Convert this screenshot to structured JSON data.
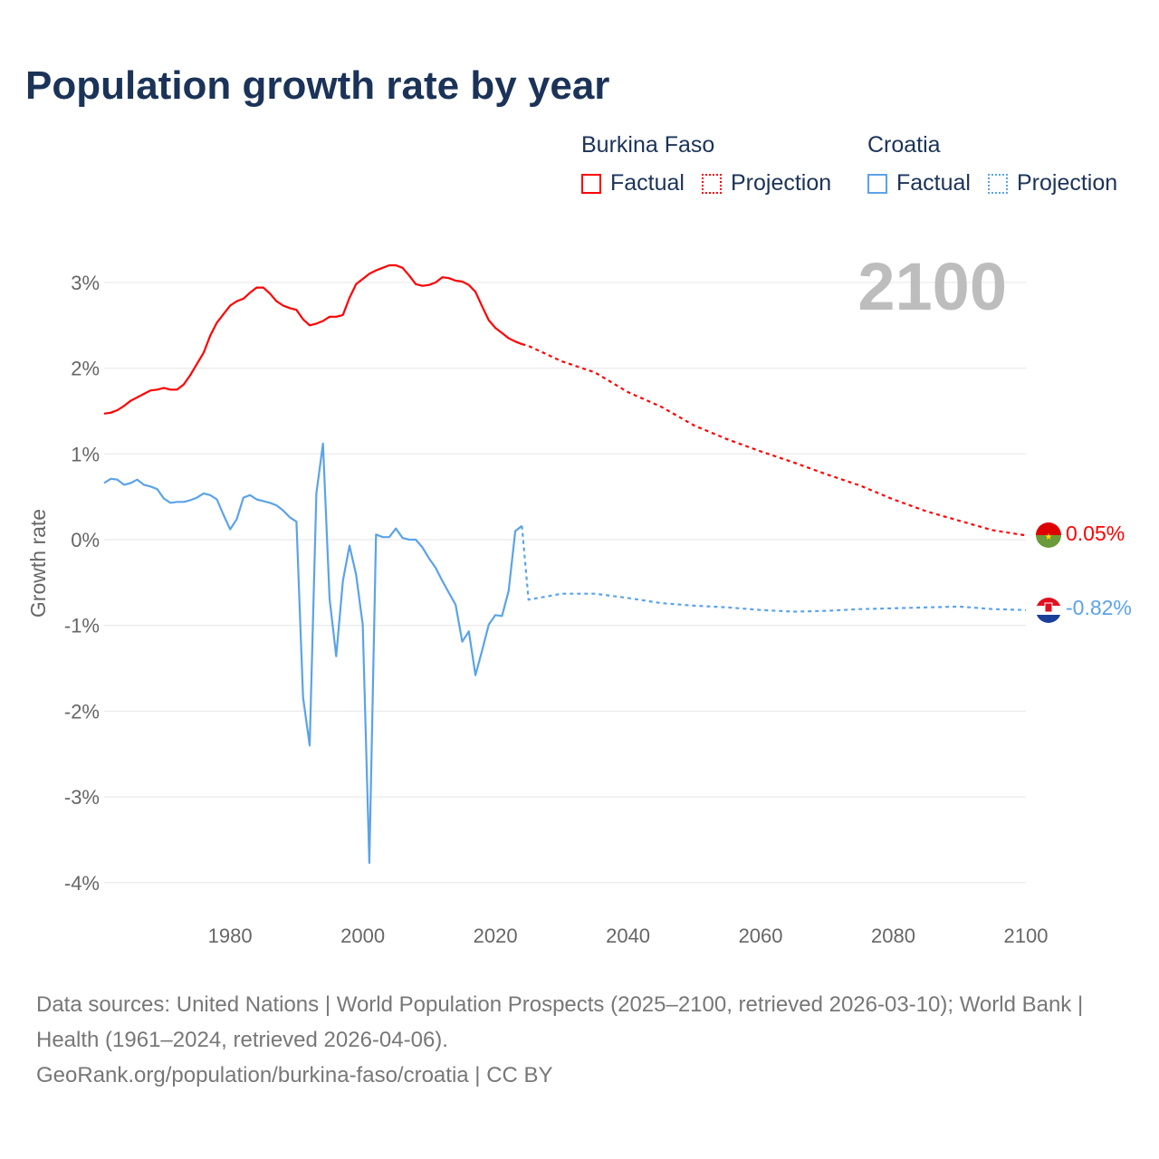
{
  "title": "Population growth rate by year",
  "legend": {
    "groups": [
      {
        "name": "Burkina Faso",
        "factual": "Factual",
        "projection": "Projection",
        "color": "#ff0000"
      },
      {
        "name": "Croatia",
        "factual": "Factual",
        "projection": "Projection",
        "color": "#5ba3e8"
      }
    ]
  },
  "year_label": "2100",
  "end_labels": {
    "burkina": "0.05%",
    "croatia": "-0.82%"
  },
  "chart_data": {
    "type": "line",
    "title": "Population growth rate by year",
    "xlabel": "",
    "ylabel": "Growth rate",
    "xlim": [
      1961,
      2100
    ],
    "ylim": [
      -4.2,
      3.4
    ],
    "xticks": [
      1980,
      2000,
      2020,
      2040,
      2060,
      2080,
      2100
    ],
    "xtick_labels": [
      "1980",
      "2000",
      "2020",
      "2040",
      "2060",
      "2080",
      "2100"
    ],
    "yticks": [
      3,
      2,
      1,
      0,
      -1,
      -2,
      -3,
      -4
    ],
    "ytick_labels": [
      "3%",
      "2%",
      "1%",
      "0%",
      "-1%",
      "-2%",
      "-3%",
      "-4%"
    ],
    "grid": true,
    "series": [
      {
        "name": "Burkina Faso Factual",
        "color": "#ff0000",
        "dash": false,
        "start_year": 1961,
        "values": [
          1.47,
          1.48,
          1.51,
          1.56,
          1.62,
          1.66,
          1.7,
          1.74,
          1.75,
          1.77,
          1.75,
          1.75,
          1.81,
          1.92,
          2.05,
          2.18,
          2.38,
          2.53,
          2.63,
          2.73,
          2.78,
          2.81,
          2.88,
          2.94,
          2.94,
          2.87,
          2.78,
          2.73,
          2.7,
          2.68,
          2.57,
          2.5,
          2.52,
          2.55,
          2.6,
          2.6,
          2.62,
          2.82,
          2.98,
          3.04,
          3.1,
          3.14,
          3.17,
          3.2,
          3.2,
          3.17,
          3.08,
          2.98,
          2.96,
          2.97,
          3.0,
          3.06,
          3.05,
          3.02,
          3.01,
          2.97,
          2.89,
          2.72,
          2.56,
          2.47,
          2.41,
          2.35,
          2.31,
          2.28
        ]
      },
      {
        "name": "Burkina Faso Projection",
        "color": "#ff0000",
        "dash": true,
        "x": [
          2024,
          2025,
          2030,
          2035,
          2040,
          2045,
          2050,
          2055,
          2060,
          2065,
          2070,
          2075,
          2080,
          2085,
          2090,
          2095,
          2100
        ],
        "values": [
          2.28,
          2.26,
          2.08,
          1.95,
          1.72,
          1.55,
          1.33,
          1.17,
          1.03,
          0.9,
          0.76,
          0.63,
          0.47,
          0.33,
          0.22,
          0.11,
          0.05
        ]
      },
      {
        "name": "Croatia Factual",
        "color": "#5ba3e8",
        "dash": false,
        "start_year": 1961,
        "values": [
          0.66,
          0.71,
          0.7,
          0.64,
          0.66,
          0.7,
          0.64,
          0.62,
          0.59,
          0.48,
          0.43,
          0.44,
          0.44,
          0.46,
          0.49,
          0.54,
          0.52,
          0.47,
          0.29,
          0.12,
          0.24,
          0.49,
          0.52,
          0.47,
          0.45,
          0.43,
          0.4,
          0.34,
          0.26,
          0.21,
          -1.84,
          -2.4,
          0.54,
          1.12,
          -0.69,
          -1.36,
          -0.48,
          -0.07,
          -0.41,
          -0.99,
          -3.77,
          0.06,
          0.03,
          0.03,
          0.13,
          0.02,
          0.0,
          0.0,
          -0.09,
          -0.22,
          -0.33,
          -0.48,
          -0.62,
          -0.76,
          -1.19,
          -1.07,
          -1.58,
          -1.29,
          -0.99,
          -0.88,
          -0.89,
          -0.6,
          0.1,
          0.16
        ]
      },
      {
        "name": "Croatia Projection",
        "color": "#5ba3e8",
        "dash": true,
        "x": [
          2024,
          2025,
          2030,
          2035,
          2040,
          2045,
          2050,
          2055,
          2060,
          2065,
          2070,
          2075,
          2080,
          2085,
          2090,
          2095,
          2100
        ],
        "values": [
          0.16,
          -0.7,
          -0.63,
          -0.63,
          -0.68,
          -0.74,
          -0.77,
          -0.79,
          -0.82,
          -0.84,
          -0.83,
          -0.81,
          -0.8,
          -0.79,
          -0.78,
          -0.81,
          -0.82
        ]
      }
    ]
  },
  "footer": {
    "sources": "Data sources: United Nations | World Population Prospects (2025–2100, retrieved 2026-03-10); World Bank | Health (1961–2024, retrieved 2026-04-06).",
    "link": "GeoRank.org/population/burkina-faso/croatia | CC BY"
  }
}
